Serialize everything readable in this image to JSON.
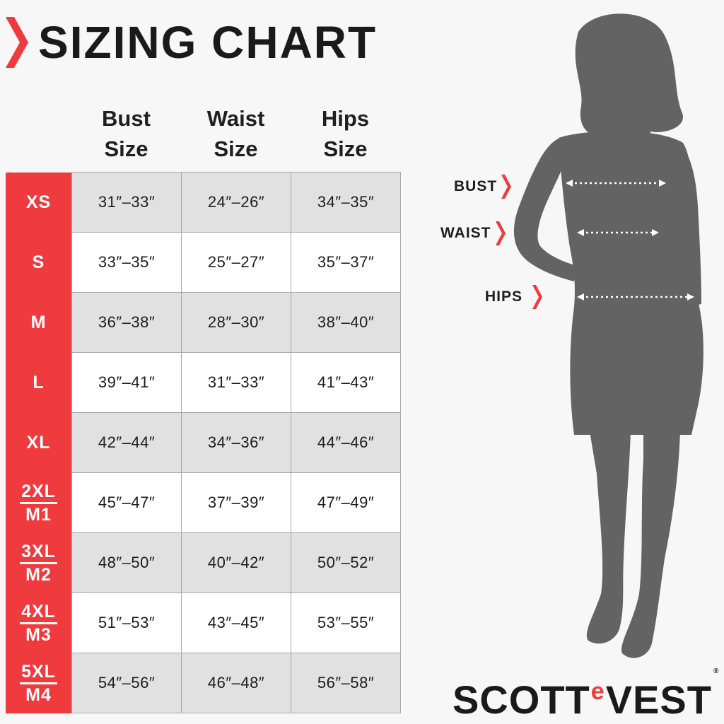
{
  "title": "SIZING CHART",
  "colors": {
    "accent": "#ef3b3e",
    "silhouette": "#636363",
    "row_shaded": "#e1e1e1",
    "row_white": "#ffffff"
  },
  "columns": [
    {
      "line1": "Bust",
      "line2": "Size"
    },
    {
      "line1": "Waist",
      "line2": "Size"
    },
    {
      "line1": "Hips",
      "line2": "Size"
    }
  ],
  "rows": [
    {
      "size": "XS",
      "bust": "31″–33″",
      "waist": "24″–26″",
      "hips": "34″–35″"
    },
    {
      "size": "S",
      "bust": "33″–35″",
      "waist": "25″–27″",
      "hips": "35″–37″"
    },
    {
      "size": "M",
      "bust": "36″–38″",
      "waist": "28″–30″",
      "hips": "38″–40″"
    },
    {
      "size": "L",
      "bust": "39″–41″",
      "waist": "31″–33″",
      "hips": "41″–43″"
    },
    {
      "size": "XL",
      "bust": "42″–44″",
      "waist": "34″–36″",
      "hips": "44″–46″"
    },
    {
      "size": "2XL",
      "size_alt": "M1",
      "bust": "45″–47″",
      "waist": "37″–39″",
      "hips": "47″–49″"
    },
    {
      "size": "3XL",
      "size_alt": "M2",
      "bust": "48″–50″",
      "waist": "40″–42″",
      "hips": "50″–52″"
    },
    {
      "size": "4XL",
      "size_alt": "M3",
      "bust": "51″–53″",
      "waist": "43″–45″",
      "hips": "53″–55″"
    },
    {
      "size": "5XL",
      "size_alt": "M4",
      "bust": "54″–56″",
      "waist": "46″–48″",
      "hips": "56″–58″"
    }
  ],
  "measurements": {
    "bust": "BUST",
    "waist": "WAIST",
    "hips": "HIPS"
  },
  "brand": {
    "left": "SCOTT",
    "middle": "e",
    "right": "VEST",
    "mark": "®"
  },
  "icons": {
    "title": "chevron-right-icon",
    "measurement": "chevron-right-icon",
    "figure": "woman-silhouette-icon"
  }
}
